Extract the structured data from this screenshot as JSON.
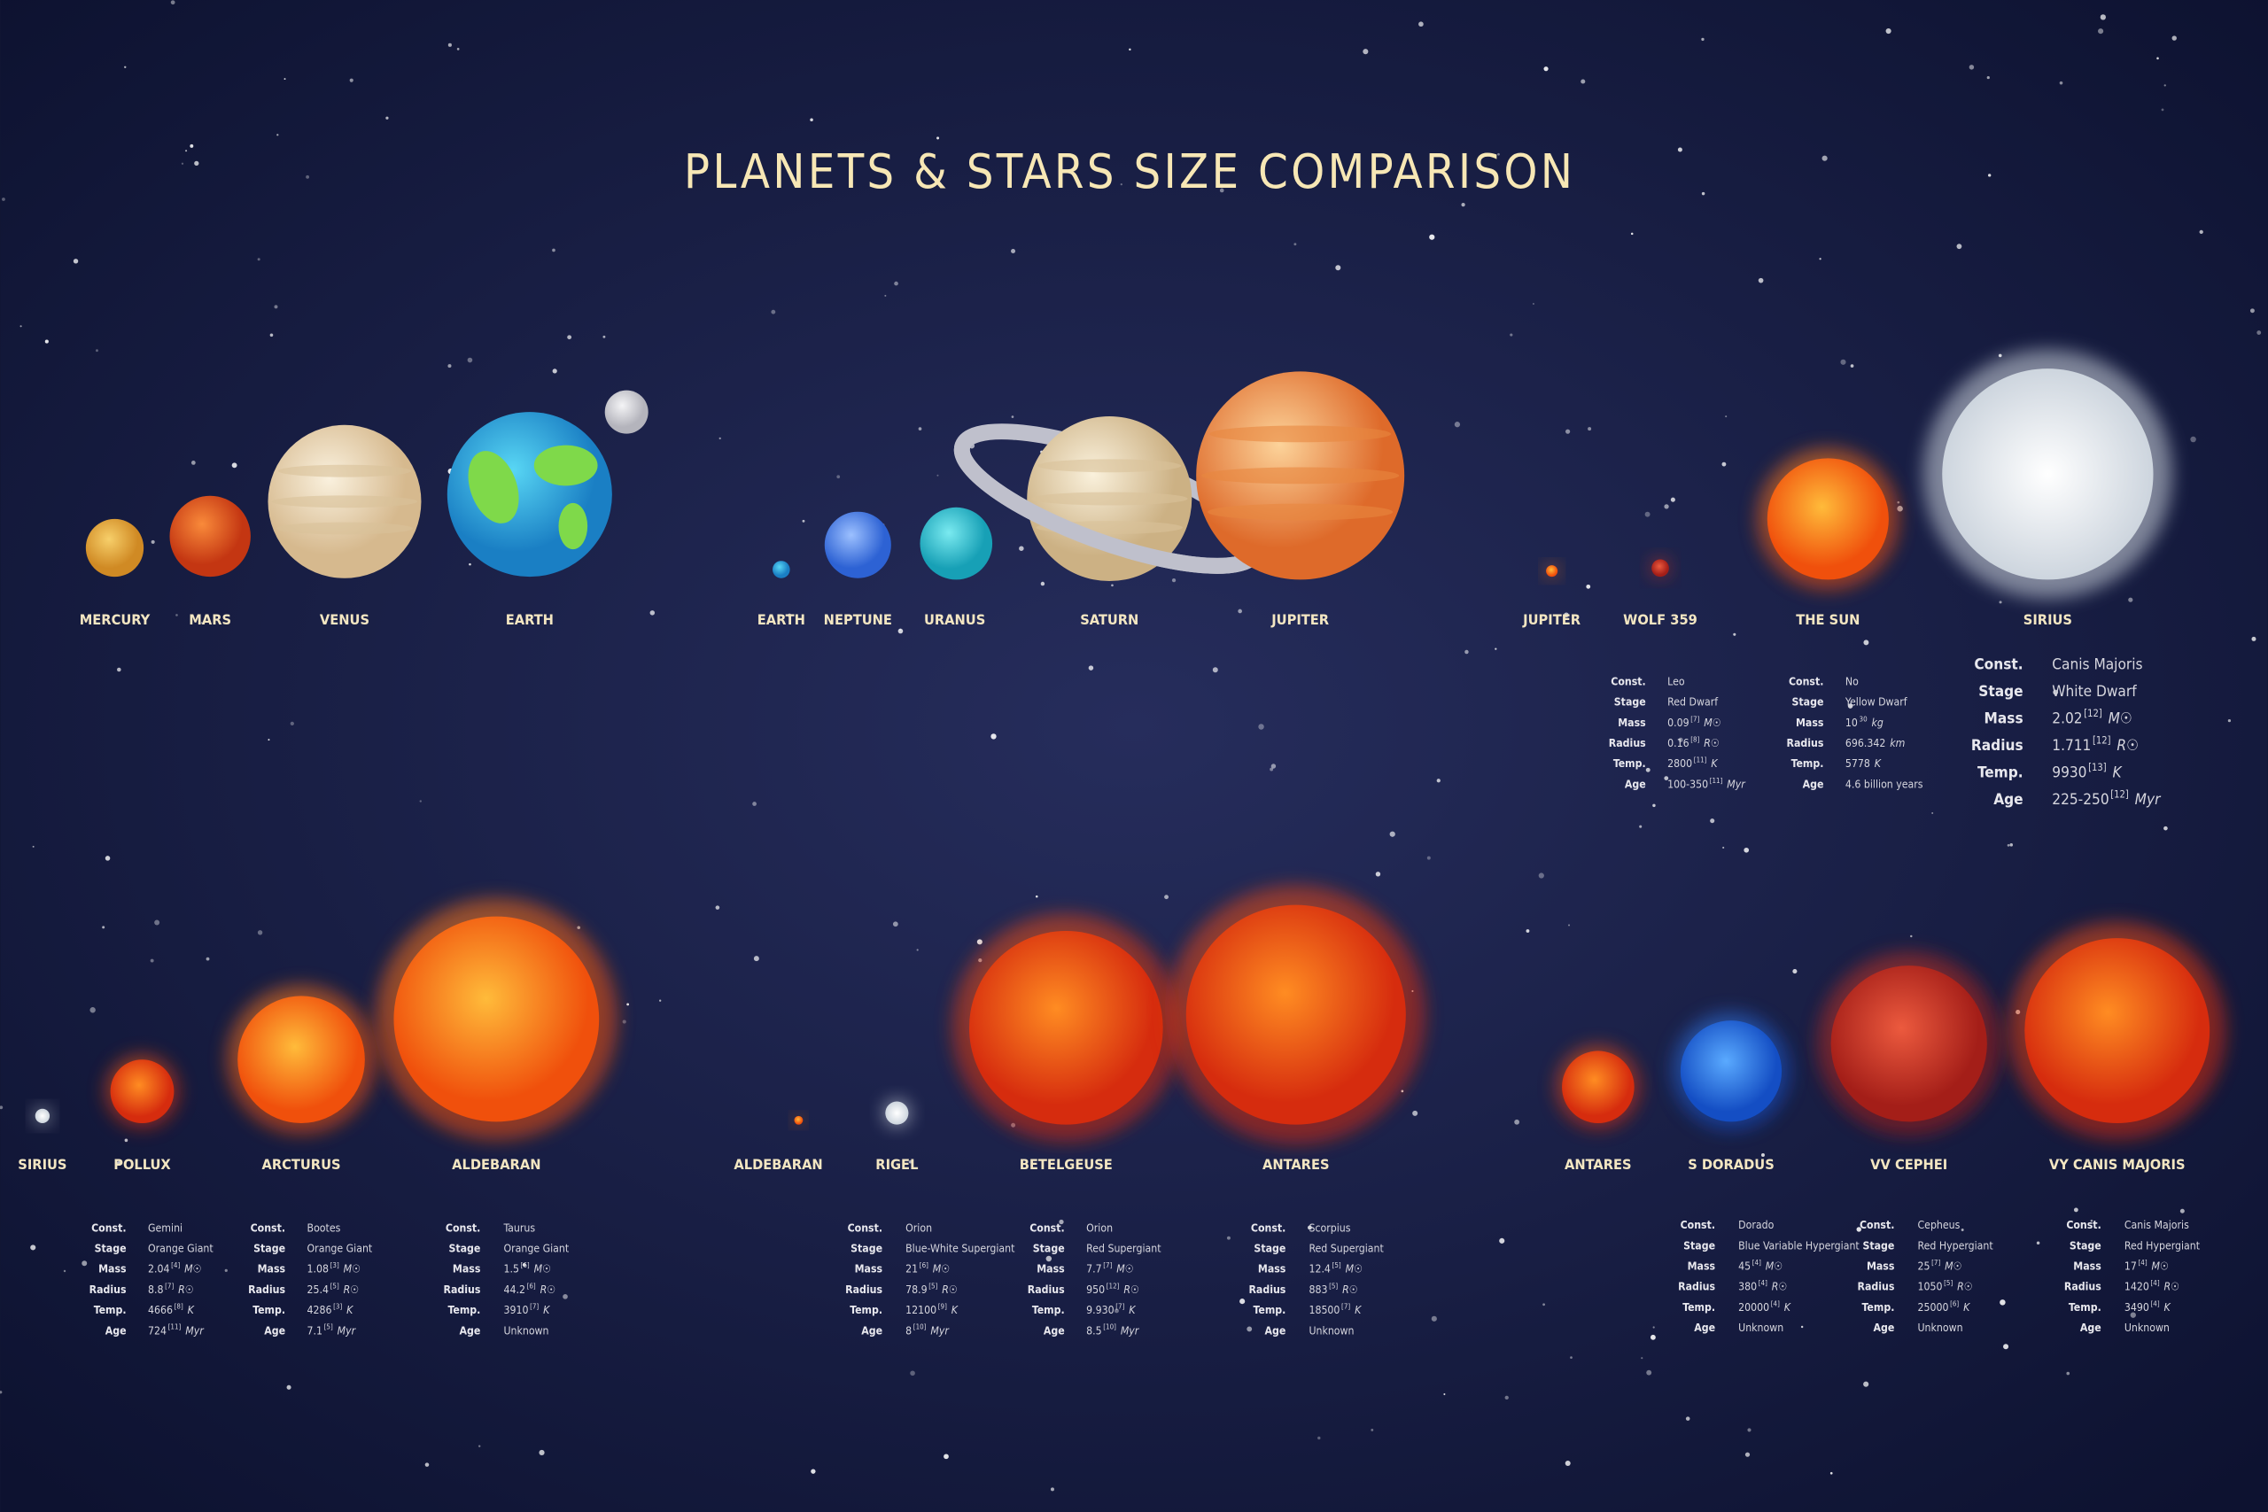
{
  "header": {
    "title": "PLANETS & STARS SIZE COMPARISON"
  },
  "rows": [
    {
      "bodies": [
        {
          "name": "MERCURY"
        },
        {
          "name": "MARS"
        },
        {
          "name": "VENUS"
        },
        {
          "name": "EARTH"
        },
        {
          "name": "EARTH"
        },
        {
          "name": "NEPTUNE"
        },
        {
          "name": "URANUS"
        },
        {
          "name": "SATURN"
        },
        {
          "name": "JUPITER"
        },
        {
          "name": "JUPITER"
        },
        {
          "name": "WOLF 359"
        },
        {
          "name": "THE SUN"
        },
        {
          "name": "SIRIUS"
        }
      ]
    },
    {
      "bodies": [
        {
          "name": "SIRIUS"
        },
        {
          "name": "POLLUX"
        },
        {
          "name": "ARCTURUS"
        },
        {
          "name": "ALDEBARAN"
        },
        {
          "name": "ALDEBARAN"
        },
        {
          "name": "RIGEL"
        },
        {
          "name": "BETELGEUSE"
        },
        {
          "name": "ANTARES"
        },
        {
          "name": "ANTARES"
        },
        {
          "name": "S DORADUS"
        },
        {
          "name": "VV CEPHEI"
        },
        {
          "name": "VY CANIS MAJORIS"
        }
      ]
    }
  ],
  "cards": [
    {
      "fields": [
        {
          "label": "Const.",
          "value": "Leo"
        },
        {
          "label": "Stage",
          "value": "Red Dwarf"
        },
        {
          "label": "Mass",
          "value": "0.09",
          "ref": "[7]",
          "unit": "M☉"
        },
        {
          "label": "Radius",
          "value": "0.16",
          "ref": "[8]",
          "unit": "R☉"
        },
        {
          "label": "Temp.",
          "value": "2800",
          "ref": "[11]",
          "unit": "K"
        },
        {
          "label": "Age",
          "value": "100-350",
          "ref": "[11]",
          "unit": "Myr"
        }
      ]
    },
    {
      "fields": [
        {
          "label": "Const.",
          "value": "No"
        },
        {
          "label": "Stage",
          "value": "Yellow Dwarf"
        },
        {
          "label": "Mass",
          "value": "10",
          "ref": "30",
          "unit": "kg"
        },
        {
          "label": "Radius",
          "value": "696.342",
          "unit": "km"
        },
        {
          "label": "Temp.",
          "value": "5778",
          "unit": "K"
        },
        {
          "label": "Age",
          "value": "4.6 billion years"
        }
      ]
    },
    {
      "fields": [
        {
          "label": "Const.",
          "value": "Canis Majoris"
        },
        {
          "label": "Stage",
          "value": "White Dwarf"
        },
        {
          "label": "Mass",
          "value": "2.02",
          "ref": "[12]",
          "unit": "M☉"
        },
        {
          "label": "Radius",
          "value": "1.711",
          "ref": "[12]",
          "unit": "R☉"
        },
        {
          "label": "Temp.",
          "value": "9930",
          "ref": "[13]",
          "unit": "K"
        },
        {
          "label": "Age",
          "value": "225-250",
          "ref": "[12]",
          "unit": "Myr"
        }
      ]
    },
    {
      "fields": [
        {
          "label": "Const.",
          "value": "Gemini"
        },
        {
          "label": "Stage",
          "value": "Orange Giant"
        },
        {
          "label": "Mass",
          "value": "2.04",
          "ref": "[4]",
          "unit": "M☉"
        },
        {
          "label": "Radius",
          "value": "8.8",
          "ref": "[7]",
          "unit": "R☉"
        },
        {
          "label": "Temp.",
          "value": "4666",
          "ref": "[8]",
          "unit": "K"
        },
        {
          "label": "Age",
          "value": "724",
          "ref": "[11]",
          "unit": "Myr"
        }
      ]
    },
    {
      "fields": [
        {
          "label": "Const.",
          "value": "Bootes"
        },
        {
          "label": "Stage",
          "value": "Orange Giant"
        },
        {
          "label": "Mass",
          "value": "1.08",
          "ref": "[3]",
          "unit": "M☉"
        },
        {
          "label": "Radius",
          "value": "25.4",
          "ref": "[5]",
          "unit": "R☉"
        },
        {
          "label": "Temp.",
          "value": "4286",
          "ref": "[3]",
          "unit": "K"
        },
        {
          "label": "Age",
          "value": "7.1",
          "ref": "[5]",
          "unit": "Myr"
        }
      ]
    },
    {
      "fields": [
        {
          "label": "Const.",
          "value": "Taurus"
        },
        {
          "label": "Stage",
          "value": "Orange Giant"
        },
        {
          "label": "Mass",
          "value": "1.5",
          "ref": "[6]",
          "unit": "M☉"
        },
        {
          "label": "Radius",
          "value": "44.2",
          "ref": "[6]",
          "unit": "R☉"
        },
        {
          "label": "Temp.",
          "value": "3910",
          "ref": "[7]",
          "unit": "K"
        },
        {
          "label": "Age",
          "value": "Unknown"
        }
      ]
    },
    {
      "fields": [
        {
          "label": "Const.",
          "value": "Orion"
        },
        {
          "label": "Stage",
          "value": "Blue-White Supergiant"
        },
        {
          "label": "Mass",
          "value": "21",
          "ref": "[6]",
          "unit": "M☉"
        },
        {
          "label": "Radius",
          "value": "78.9",
          "ref": "[5]",
          "unit": "R☉"
        },
        {
          "label": "Temp.",
          "value": "12100",
          "ref": "[9]",
          "unit": "K"
        },
        {
          "label": "Age",
          "value": "8",
          "ref": "[10]",
          "unit": "Myr"
        }
      ]
    },
    {
      "fields": [
        {
          "label": "Const.",
          "value": "Orion"
        },
        {
          "label": "Stage",
          "value": "Red Supergiant"
        },
        {
          "label": "Mass",
          "value": "7.7",
          "ref": "[7]",
          "unit": "M☉"
        },
        {
          "label": "Radius",
          "value": "950",
          "ref": "[12]",
          "unit": "R☉"
        },
        {
          "label": "Temp.",
          "value": "9.930",
          "ref": "[7]",
          "unit": "K"
        },
        {
          "label": "Age",
          "value": "8.5",
          "ref": "[10]",
          "unit": "Myr"
        }
      ]
    },
    {
      "fields": [
        {
          "label": "Const.",
          "value": "Scorpius"
        },
        {
          "label": "Stage",
          "value": "Red Supergiant"
        },
        {
          "label": "Mass",
          "value": "12.4",
          "ref": "[5]",
          "unit": "M☉"
        },
        {
          "label": "Radius",
          "value": "883",
          "ref": "[5]",
          "unit": "R☉"
        },
        {
          "label": "Temp.",
          "value": "18500",
          "ref": "[7]",
          "unit": "K"
        },
        {
          "label": "Age",
          "value": "Unknown"
        }
      ]
    },
    {
      "fields": [
        {
          "label": "Const.",
          "value": "Dorado"
        },
        {
          "label": "Stage",
          "value": "Blue Variable Hypergiant"
        },
        {
          "label": "Mass",
          "value": "45",
          "ref": "[4]",
          "unit": "M☉"
        },
        {
          "label": "Radius",
          "value": "380",
          "ref": "[4]",
          "unit": "R☉"
        },
        {
          "label": "Temp.",
          "value": "20000",
          "ref": "[4]",
          "unit": "K"
        },
        {
          "label": "Age",
          "value": "Unknown"
        }
      ]
    },
    {
      "fields": [
        {
          "label": "Const.",
          "value": "Cepheus"
        },
        {
          "label": "Stage",
          "value": "Red Hypergiant"
        },
        {
          "label": "Mass",
          "value": "25",
          "ref": "[7]",
          "unit": "M☉"
        },
        {
          "label": "Radius",
          "value": "1050",
          "ref": "[5]",
          "unit": "R☉"
        },
        {
          "label": "Temp.",
          "value": "25000",
          "ref": "[6]",
          "unit": "K"
        },
        {
          "label": "Age",
          "value": "Unknown"
        }
      ]
    },
    {
      "fields": [
        {
          "label": "Const.",
          "value": "Canis Majoris"
        },
        {
          "label": "Stage",
          "value": "Red Hypergiant"
        },
        {
          "label": "Mass",
          "value": "17",
          "ref": "[4]",
          "unit": "M☉"
        },
        {
          "label": "Radius",
          "value": "1420",
          "ref": "[4]",
          "unit": "R☉"
        },
        {
          "label": "Temp.",
          "value": "3490",
          "ref": "[4]",
          "unit": "K"
        },
        {
          "label": "Age",
          "value": "Unknown"
        }
      ]
    }
  ]
}
